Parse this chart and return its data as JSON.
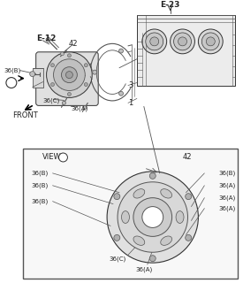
{
  "bg": "#ffffff",
  "lc": "#555555",
  "lc_dark": "#333333",
  "gray_light": "#e0e0e0",
  "gray_mid": "#cccccc",
  "gray_dark": "#aaaaaa",
  "fs_tiny": 5.0,
  "fs_small": 5.5,
  "fs_med": 6.0,
  "fs_bold": 6.5,
  "e23_label": "E-23",
  "e12_label": "E-12",
  "front_label": "FRONT",
  "view_label": "VIEW",
  "label_42": "42",
  "label_1": "1",
  "label_3": "3",
  "label_36b": "36(B)",
  "label_36c": "36(C)",
  "label_36a": "36(A)",
  "view_left_labels": [
    "36(B)",
    "36(B)",
    "36(B)"
  ],
  "view_right_labels": [
    "36(B)",
    "36(A)",
    "36(A)",
    "36(A)"
  ],
  "view_bottom_labels": [
    "36(C)",
    "36(A)"
  ]
}
